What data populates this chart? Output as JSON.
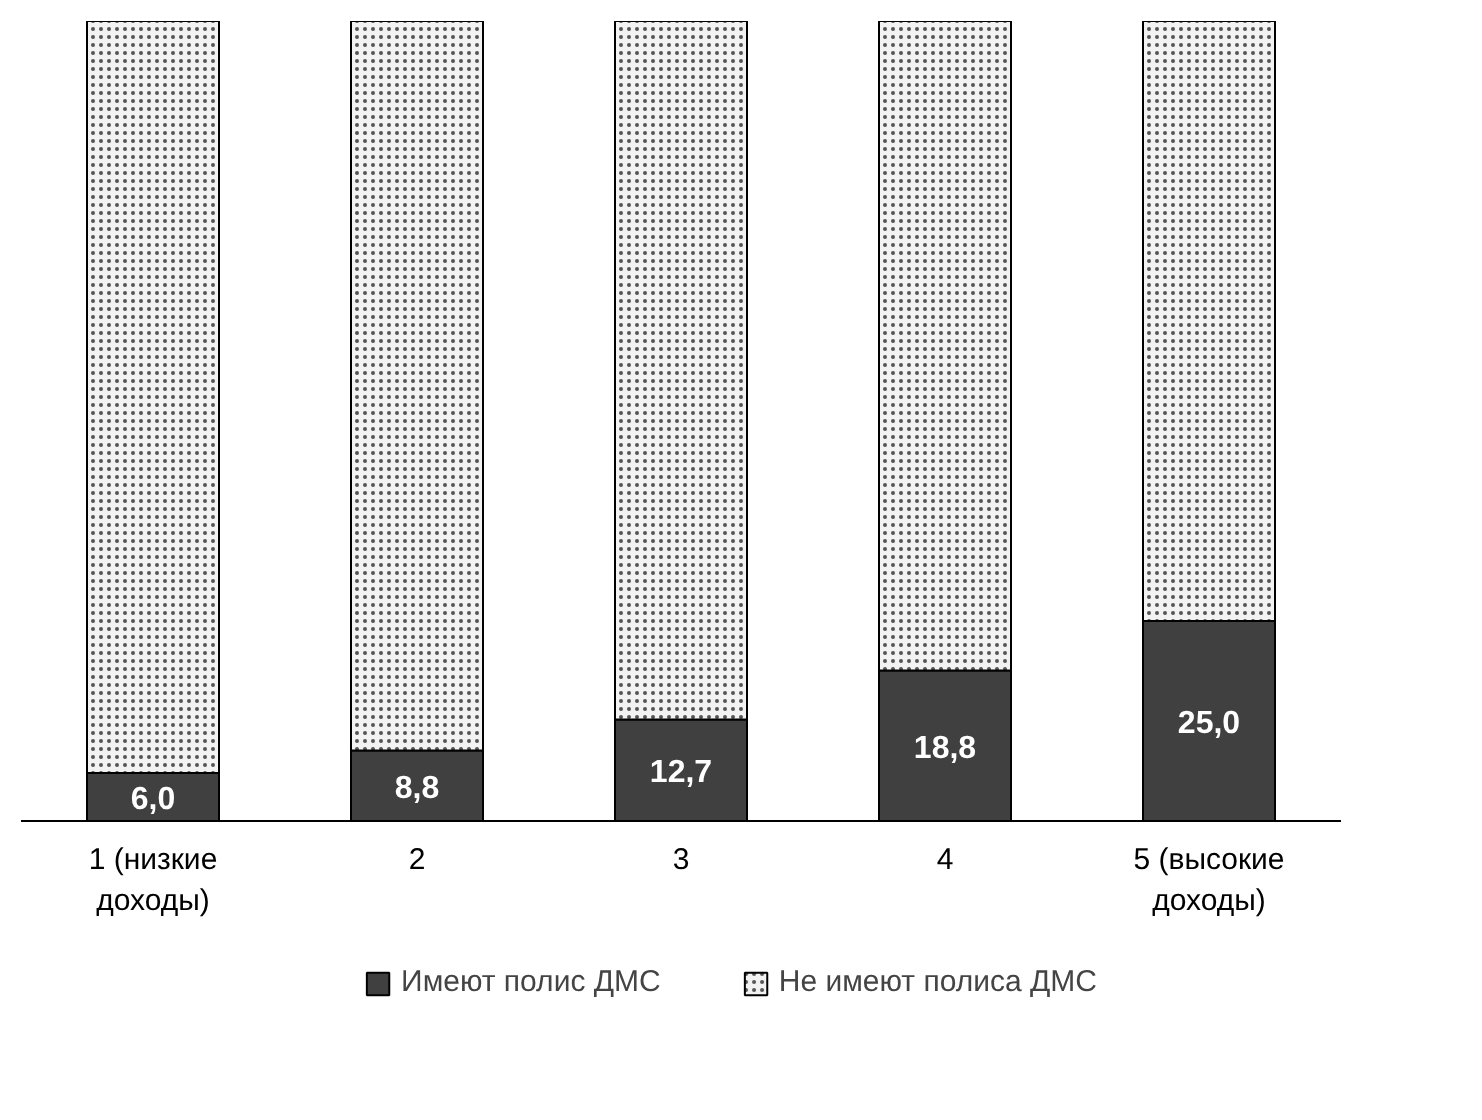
{
  "chart_data": {
    "type": "bar",
    "stacked": true,
    "categories": [
      "1 (низкие\nдоходы)",
      "2",
      "3",
      "4",
      "5 (высокие\nдоходы)"
    ],
    "series": [
      {
        "name": "Имеют полис ДМС",
        "color": "#404040",
        "values": [
          6.0,
          8.8,
          12.7,
          18.8,
          25.0
        ],
        "value_labels": [
          "6,0",
          "8,8",
          "12,7",
          "18,8",
          "25,0"
        ]
      },
      {
        "name": "Не имеют полиса ДМС",
        "color": "#f2f2f2",
        "values": [
          94.0,
          91.2,
          87.3,
          81.2,
          75.0
        ]
      }
    ],
    "ylim": [
      0,
      100
    ],
    "tick_labels": "x",
    "grid": false,
    "legend": "bottom"
  }
}
